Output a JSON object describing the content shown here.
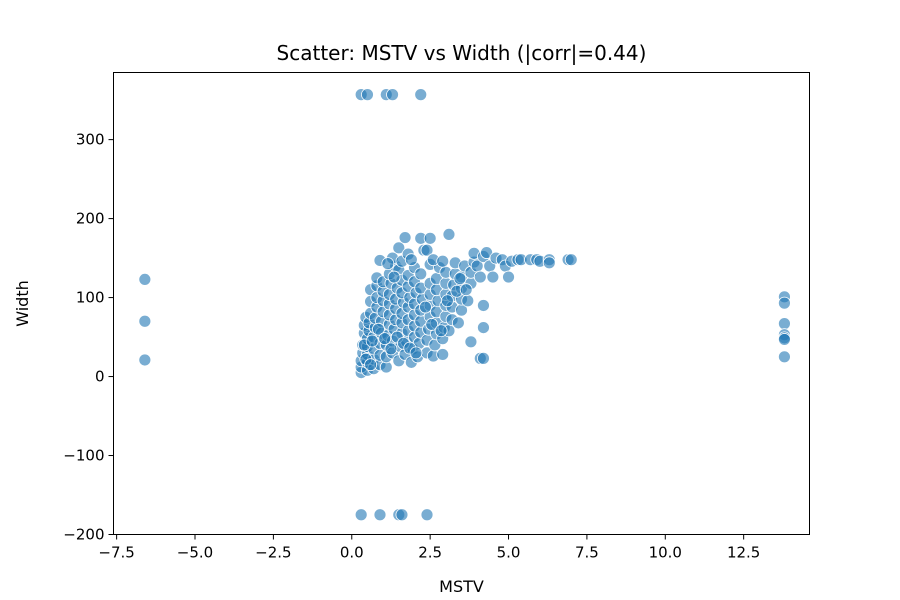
{
  "chart_data": {
    "type": "scatter",
    "title": "Scatter: MSTV vs Width (|corr|=0.44)",
    "xlabel": "MSTV",
    "ylabel": "Width",
    "xlim": [
      -7.6,
      14.6
    ],
    "ylim": [
      -200,
      385
    ],
    "xticks": [
      -7.5,
      -5.0,
      -2.5,
      0.0,
      2.5,
      5.0,
      7.5,
      10.0,
      12.5
    ],
    "xtick_labels": [
      "−7.5",
      "−5.0",
      "−2.5",
      "0.0",
      "2.5",
      "5.0",
      "7.5",
      "10.0",
      "12.5"
    ],
    "yticks": [
      -200,
      -100,
      0,
      100,
      200,
      300
    ],
    "ytick_labels": [
      "−200",
      "−100",
      "0",
      "100",
      "200",
      "300"
    ],
    "grid": false,
    "marker_color": "#1f77b4",
    "marker_edge_color": "#ffffff",
    "marker_alpha": 0.6,
    "points": [
      [
        -6.6,
        123
      ],
      [
        -6.6,
        70
      ],
      [
        -6.6,
        21
      ],
      [
        13.8,
        101
      ],
      [
        13.8,
        93
      ],
      [
        13.8,
        67
      ],
      [
        13.8,
        53
      ],
      [
        13.8,
        49
      ],
      [
        13.8,
        47
      ],
      [
        13.8,
        25
      ],
      [
        0.3,
        357
      ],
      [
        0.5,
        357
      ],
      [
        1.1,
        357
      ],
      [
        1.3,
        357
      ],
      [
        2.2,
        357
      ],
      [
        0.3,
        -175
      ],
      [
        0.9,
        -175
      ],
      [
        1.5,
        -175
      ],
      [
        1.6,
        -175
      ],
      [
        2.4,
        -175
      ],
      [
        0.3,
        5
      ],
      [
        0.3,
        12
      ],
      [
        0.3,
        20
      ],
      [
        0.35,
        30
      ],
      [
        0.35,
        40
      ],
      [
        0.4,
        55
      ],
      [
        0.4,
        65
      ],
      [
        0.45,
        75
      ],
      [
        0.5,
        8
      ],
      [
        0.5,
        18
      ],
      [
        0.5,
        28
      ],
      [
        0.5,
        38
      ],
      [
        0.5,
        48
      ],
      [
        0.55,
        58
      ],
      [
        0.55,
        68
      ],
      [
        0.6,
        80
      ],
      [
        0.6,
        95
      ],
      [
        0.6,
        110
      ],
      [
        0.7,
        10
      ],
      [
        0.7,
        22
      ],
      [
        0.7,
        35
      ],
      [
        0.7,
        50
      ],
      [
        0.75,
        62
      ],
      [
        0.75,
        74
      ],
      [
        0.8,
        88
      ],
      [
        0.8,
        100
      ],
      [
        0.8,
        115
      ],
      [
        0.8,
        125
      ],
      [
        0.9,
        15
      ],
      [
        0.9,
        27
      ],
      [
        0.9,
        42
      ],
      [
        0.95,
        55
      ],
      [
        0.95,
        70
      ],
      [
        1.0,
        82
      ],
      [
        1.0,
        96
      ],
      [
        1.0,
        108
      ],
      [
        1.0,
        120
      ],
      [
        0.9,
        147
      ],
      [
        1.1,
        12
      ],
      [
        1.1,
        25
      ],
      [
        1.1,
        40
      ],
      [
        1.15,
        52
      ],
      [
        1.2,
        66
      ],
      [
        1.2,
        78
      ],
      [
        1.2,
        92
      ],
      [
        1.2,
        104
      ],
      [
        1.25,
        118
      ],
      [
        1.2,
        130
      ],
      [
        1.3,
        30
      ],
      [
        1.3,
        45
      ],
      [
        1.35,
        60
      ],
      [
        1.4,
        72
      ],
      [
        1.4,
        86
      ],
      [
        1.4,
        98
      ],
      [
        1.45,
        112
      ],
      [
        1.4,
        140
      ],
      [
        1.3,
        150
      ],
      [
        1.5,
        135
      ],
      [
        1.5,
        20
      ],
      [
        1.55,
        38
      ],
      [
        1.6,
        55
      ],
      [
        1.6,
        68
      ],
      [
        1.6,
        80
      ],
      [
        1.65,
        94
      ],
      [
        1.6,
        106
      ],
      [
        1.6,
        122
      ],
      [
        1.5,
        163
      ],
      [
        1.6,
        146
      ],
      [
        1.7,
        28
      ],
      [
        1.75,
        44
      ],
      [
        1.8,
        58
      ],
      [
        1.8,
        72
      ],
      [
        1.8,
        88
      ],
      [
        1.85,
        100
      ],
      [
        1.8,
        114
      ],
      [
        1.8,
        128
      ],
      [
        1.7,
        176
      ],
      [
        1.8,
        155
      ],
      [
        1.9,
        18
      ],
      [
        1.95,
        35
      ],
      [
        2.0,
        50
      ],
      [
        2.0,
        64
      ],
      [
        2.0,
        78
      ],
      [
        2.0,
        92
      ],
      [
        2.05,
        106
      ],
      [
        2.0,
        120
      ],
      [
        2.0,
        138
      ],
      [
        1.9,
        148
      ],
      [
        2.1,
        25
      ],
      [
        2.15,
        42
      ],
      [
        2.2,
        56
      ],
      [
        2.2,
        70
      ],
      [
        2.2,
        84
      ],
      [
        2.25,
        98
      ],
      [
        2.2,
        112
      ],
      [
        2.2,
        130
      ],
      [
        2.2,
        175
      ],
      [
        2.3,
        160
      ],
      [
        2.4,
        30
      ],
      [
        2.4,
        46
      ],
      [
        2.45,
        60
      ],
      [
        2.5,
        76
      ],
      [
        2.5,
        90
      ],
      [
        2.5,
        104
      ],
      [
        2.5,
        118
      ],
      [
        2.4,
        160
      ],
      [
        2.5,
        175
      ],
      [
        2.5,
        142
      ],
      [
        2.6,
        26
      ],
      [
        2.65,
        40
      ],
      [
        2.7,
        54
      ],
      [
        2.7,
        68
      ],
      [
        2.7,
        82
      ],
      [
        2.75,
        96
      ],
      [
        2.7,
        110
      ],
      [
        2.7,
        124
      ],
      [
        2.8,
        138
      ],
      [
        2.6,
        148
      ],
      [
        2.9,
        28
      ],
      [
        2.9,
        48
      ],
      [
        2.95,
        62
      ],
      [
        3.0,
        76
      ],
      [
        3.0,
        90
      ],
      [
        3.0,
        104
      ],
      [
        3.0,
        118
      ],
      [
        3.0,
        132
      ],
      [
        2.9,
        146
      ],
      [
        3.1,
        180
      ],
      [
        3.1,
        58
      ],
      [
        3.2,
        72
      ],
      [
        3.2,
        88
      ],
      [
        3.2,
        102
      ],
      [
        3.25,
        116
      ],
      [
        3.3,
        130
      ],
      [
        3.3,
        144
      ],
      [
        3.4,
        68
      ],
      [
        3.5,
        84
      ],
      [
        3.5,
        98
      ],
      [
        3.5,
        112
      ],
      [
        3.5,
        126
      ],
      [
        3.6,
        140
      ],
      [
        3.7,
        96
      ],
      [
        3.8,
        118
      ],
      [
        3.8,
        132
      ],
      [
        3.9,
        145
      ],
      [
        3.9,
        156
      ],
      [
        3.8,
        44
      ],
      [
        4.0,
        140
      ],
      [
        4.1,
        126
      ],
      [
        4.2,
        152
      ],
      [
        4.2,
        90
      ],
      [
        4.2,
        62
      ],
      [
        4.1,
        23
      ],
      [
        4.2,
        23
      ],
      [
        4.3,
        157
      ],
      [
        4.4,
        140
      ],
      [
        4.5,
        126
      ],
      [
        4.6,
        150
      ],
      [
        4.8,
        148
      ],
      [
        4.9,
        140
      ],
      [
        5.0,
        126
      ],
      [
        5.1,
        146
      ],
      [
        5.3,
        148
      ],
      [
        5.4,
        148
      ],
      [
        5.7,
        148
      ],
      [
        5.9,
        148
      ],
      [
        6.0,
        146
      ],
      [
        6.3,
        148
      ],
      [
        6.3,
        144
      ],
      [
        6.9,
        148
      ],
      [
        7.0,
        148
      ],
      [
        0.4,
        40
      ],
      [
        0.45,
        22
      ],
      [
        0.6,
        15
      ],
      [
        0.65,
        45
      ],
      [
        0.85,
        60
      ],
      [
        1.05,
        48
      ],
      [
        1.25,
        35
      ],
      [
        1.45,
        50
      ],
      [
        1.65,
        42
      ],
      [
        1.85,
        36
      ],
      [
        2.05,
        30
      ],
      [
        2.35,
        88
      ],
      [
        2.55,
        66
      ],
      [
        2.85,
        58
      ],
      [
        3.05,
        96
      ],
      [
        3.35,
        108
      ],
      [
        3.45,
        124
      ],
      [
        3.65,
        110
      ],
      [
        1.15,
        143
      ],
      [
        1.35,
        126
      ]
    ]
  }
}
